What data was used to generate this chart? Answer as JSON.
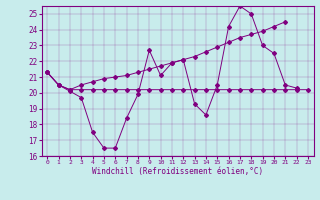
{
  "xlabel": "Windchill (Refroidissement éolien,°C)",
  "ylabel": "",
  "background_color": "#c8ecec",
  "line_color": "#800080",
  "x": [
    0,
    1,
    2,
    3,
    4,
    5,
    6,
    7,
    8,
    9,
    10,
    11,
    12,
    13,
    14,
    15,
    16,
    17,
    18,
    19,
    20,
    21,
    22,
    23
  ],
  "series1": [
    21.3,
    20.5,
    20.1,
    19.7,
    17.5,
    16.5,
    16.5,
    18.4,
    19.9,
    22.7,
    21.1,
    21.9,
    22.1,
    19.3,
    18.6,
    20.5,
    24.2,
    25.5,
    25.0,
    23.0,
    22.5,
    20.5,
    20.3,
    null
  ],
  "series2": [
    21.3,
    20.5,
    20.2,
    20.5,
    20.7,
    20.9,
    21.0,
    21.1,
    21.3,
    21.5,
    21.7,
    21.9,
    22.1,
    22.3,
    22.6,
    22.9,
    23.2,
    23.5,
    23.7,
    23.9,
    24.2,
    24.5,
    null,
    null
  ],
  "series3": [
    21.3,
    20.5,
    20.2,
    20.2,
    20.2,
    20.2,
    20.2,
    20.2,
    20.2,
    20.2,
    20.2,
    20.2,
    20.2,
    20.2,
    20.2,
    20.2,
    20.2,
    20.2,
    20.2,
    20.2,
    20.2,
    20.2,
    20.2,
    20.2
  ],
  "ylim": [
    16,
    25.5
  ],
  "xlim": [
    -0.5,
    23.5
  ],
  "yticks": [
    16,
    17,
    18,
    19,
    20,
    21,
    22,
    23,
    24,
    25
  ],
  "xticks": [
    0,
    1,
    2,
    3,
    4,
    5,
    6,
    7,
    8,
    9,
    10,
    11,
    12,
    13,
    14,
    15,
    16,
    17,
    18,
    19,
    20,
    21,
    22,
    23
  ]
}
